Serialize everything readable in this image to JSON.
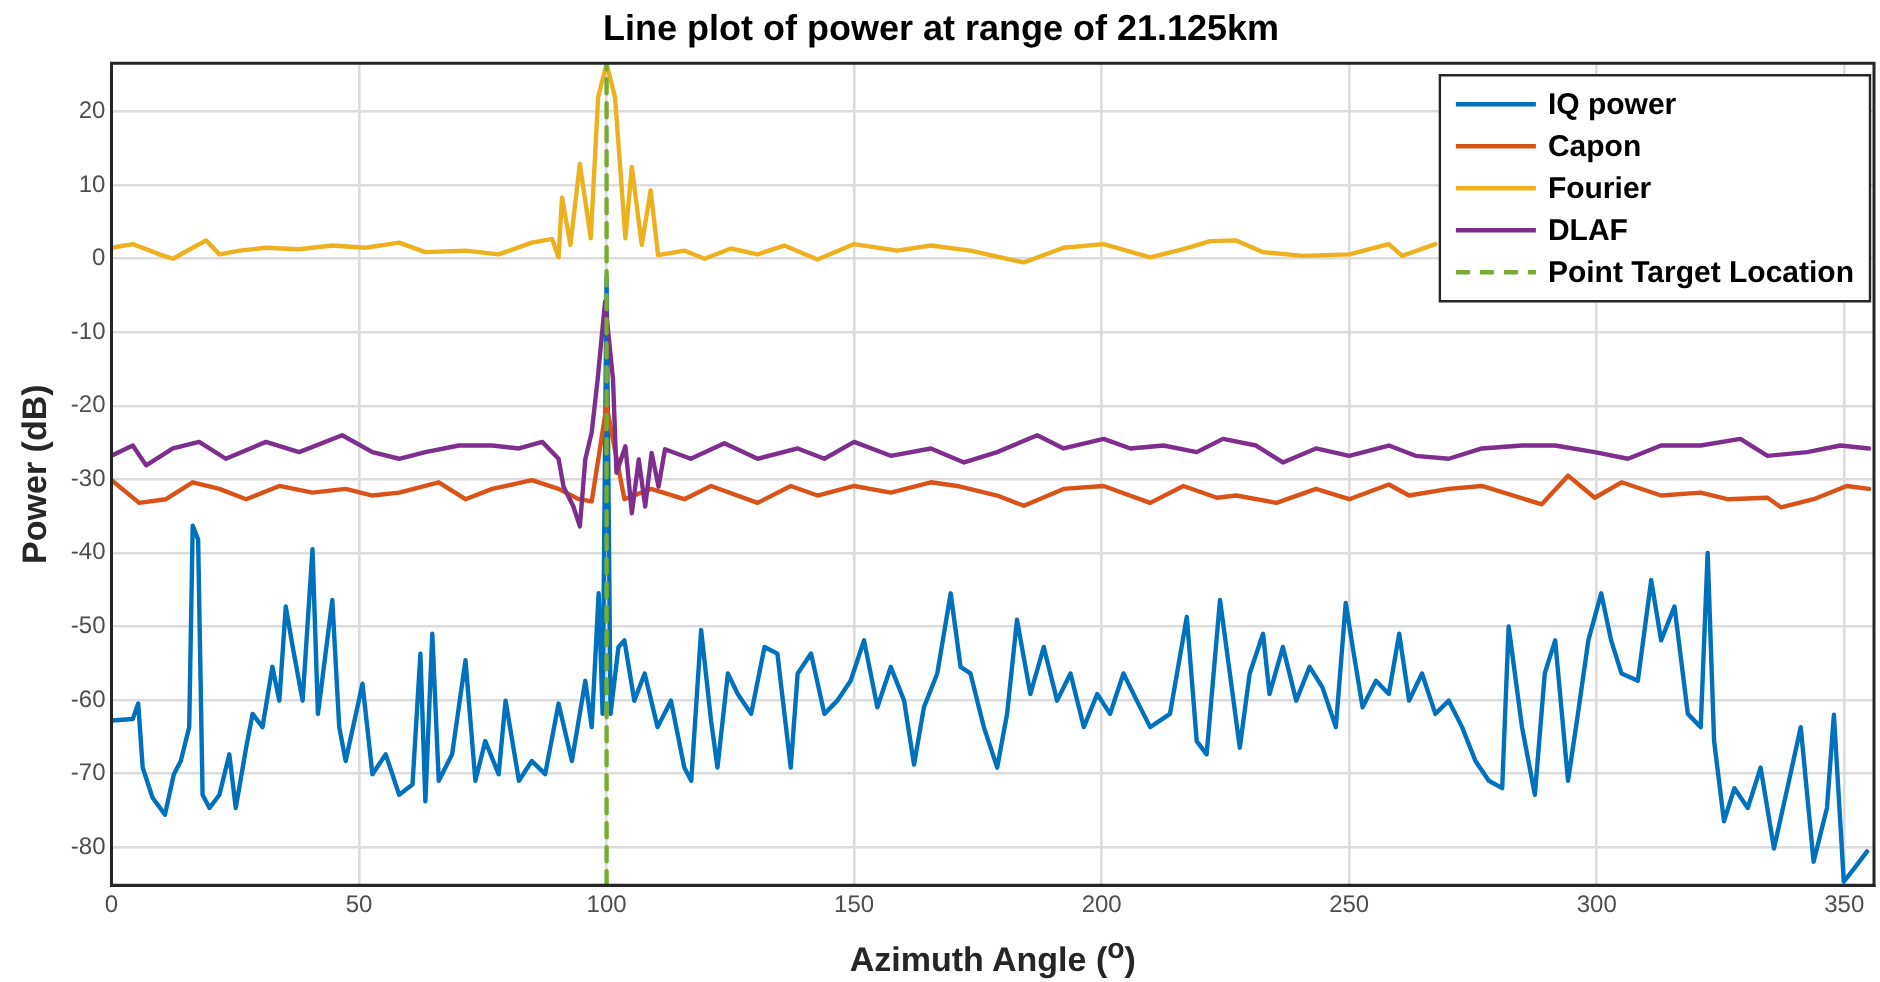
{
  "chart_data": {
    "type": "line",
    "title": "Line plot of power at range of 21.125km",
    "xlabel": "Azimuth Angle ($^{o}$)",
    "ylabel": "Power (dB)",
    "xlim": [
      0,
      356
    ],
    "ylim": [
      -85.2,
      26.6
    ],
    "xticks": [
      0,
      50,
      100,
      150,
      200,
      250,
      300,
      350
    ],
    "yticks": [
      -80,
      -70,
      -60,
      -50,
      -40,
      -30,
      -20,
      -10,
      0,
      10,
      20
    ],
    "grid": true,
    "legend": "top right",
    "marker": "none",
    "line_style": "solid",
    "series": [
      {
        "name": "IQ power",
        "color": "#0072bd",
        "x": [
          0,
          4.3,
          5.4,
          6.3,
          8.3,
          10.8,
          12.6,
          14,
          15.7,
          16.4,
          17.5,
          18.4,
          19.8,
          21.8,
          23.8,
          25.1,
          27.2,
          28.5,
          30.5,
          32.5,
          33.9,
          35.2,
          36.6,
          38.6,
          40.6,
          41.7,
          44.6,
          46,
          47.3,
          50.7,
          52.7,
          55.4,
          58.1,
          60.8,
          62.4,
          63.4,
          64.8,
          66.1,
          68.8,
          71.5,
          73.5,
          75.5,
          78.2,
          79.6,
          82.3,
          84.9,
          87.6,
          90.3,
          93,
          95.7,
          97,
          98.4,
          99.2,
          100,
          100.8,
          102.4,
          103.6,
          105.6,
          107.7,
          110.3,
          113,
          115.7,
          117.1,
          119.1,
          121.1,
          122.4,
          124.5,
          126.5,
          129.2,
          131.9,
          134.5,
          137.2,
          138.6,
          141.3,
          144,
          146.6,
          149.3,
          152,
          154.7,
          157.4,
          160.1,
          162.1,
          164.1,
          166.8,
          169.5,
          171.5,
          173.5,
          176.2,
          178.9,
          180.9,
          182.9,
          185.6,
          188.3,
          191,
          193.7,
          196.4,
          199.1,
          201.7,
          204.4,
          207.1,
          209.8,
          213.8,
          217.2,
          219.2,
          221.2,
          223.9,
          225.9,
          227.9,
          229.9,
          232.6,
          233.9,
          236.6,
          239.3,
          242,
          244.6,
          247.3,
          249.3,
          250.7,
          252.7,
          255.4,
          258,
          260.1,
          262.1,
          264.7,
          267.4,
          270.1,
          272.8,
          275.5,
          278.2,
          280.9,
          282.2,
          284.9,
          287.5,
          289.5,
          291.6,
          294.2,
          296.2,
          298.3,
          300.9,
          302.9,
          305,
          308.3,
          311,
          313,
          315.7,
          318.4,
          321,
          322.4,
          323.7,
          325.7,
          327.8,
          330.5,
          333.1,
          335.8,
          338.5,
          341.2,
          343.8,
          346.5,
          347.9,
          349.9,
          351.9,
          354.6
        ],
        "values": [
          -62.8,
          -62.6,
          -60.5,
          -69.2,
          -73.3,
          -75.6,
          -70.1,
          -68.3,
          -63.7,
          -36.3,
          -38.2,
          -72.9,
          -74.7,
          -72.9,
          -67.4,
          -74.7,
          -66.5,
          -61.9,
          -63.7,
          -55.5,
          -60.1,
          -47.3,
          -52.8,
          -60.1,
          -39.5,
          -61.9,
          -46.4,
          -63.7,
          -68.3,
          -57.8,
          -70.1,
          -67.4,
          -72.9,
          -71.5,
          -53.7,
          -73.8,
          -51,
          -71,
          -67.4,
          -54.6,
          -71,
          -65.6,
          -70.1,
          -60.1,
          -71,
          -68.3,
          -70.1,
          -60.5,
          -68.3,
          -57.4,
          -63.7,
          -45.5,
          -61.9,
          -2.6,
          -61.9,
          -52.8,
          -51.9,
          -60.1,
          -56.4,
          -63.7,
          -60.1,
          -69.2,
          -71,
          -50.5,
          -62.8,
          -69.2,
          -56.4,
          -59.2,
          -61.9,
          -52.8,
          -53.7,
          -69.2,
          -56.4,
          -53.7,
          -61.9,
          -60.1,
          -57.4,
          -51.9,
          -61,
          -55.5,
          -60.1,
          -68.8,
          -61,
          -56.4,
          -45.5,
          -55.5,
          -56.4,
          -63.7,
          -69.2,
          -61.9,
          -49.1,
          -59.2,
          -52.8,
          -60.1,
          -56.4,
          -63.7,
          -59.2,
          -61.9,
          -56.4,
          -60.1,
          -63.7,
          -61.9,
          -48.7,
          -65.6,
          -67.4,
          -46.4,
          -56.4,
          -66.5,
          -56.4,
          -51,
          -59.2,
          -52.8,
          -60.1,
          -55.5,
          -58.3,
          -63.7,
          -46.8,
          -52.8,
          -61,
          -57.4,
          -59.2,
          -51,
          -60.1,
          -56.4,
          -61.9,
          -60.1,
          -63.7,
          -68.3,
          -71,
          -72,
          -50,
          -63.7,
          -72.9,
          -56.4,
          -51.9,
          -71,
          -61.9,
          -51.9,
          -45.5,
          -51.9,
          -56.4,
          -57.4,
          -43.7,
          -51.9,
          -47.3,
          -61.9,
          -63.7,
          -40,
          -65.6,
          -76.5,
          -72,
          -74.7,
          -69.2,
          -80.2,
          -72,
          -63.7,
          -82,
          -74.7,
          -62,
          -84.7,
          -83,
          -80.6
        ]
      },
      {
        "name": "Capon",
        "color": "#d95319",
        "x": [
          0,
          5.6,
          11,
          16.4,
          21.8,
          27.2,
          33.9,
          40.6,
          47.3,
          52.7,
          58.1,
          66.1,
          71.5,
          76.9,
          84.9,
          90.3,
          94.4,
          97,
          100,
          103.6,
          109,
          115.7,
          121.1,
          130.5,
          137.2,
          142.6,
          150,
          157.4,
          165.5,
          170.8,
          178.9,
          184.3,
          192.3,
          200.4,
          209.8,
          216.5,
          223.3,
          227.2,
          235.3,
          243.3,
          250,
          258,
          262.1,
          270.1,
          276.8,
          288.9,
          294.2,
          299.6,
          305,
          313,
          321,
          326.4,
          334.5,
          337.2,
          343.8,
          350.5,
          355
        ],
        "values": [
          -30.1,
          -33.2,
          -32.7,
          -30.4,
          -31.3,
          -32.7,
          -30.9,
          -31.8,
          -31.3,
          -32.2,
          -31.8,
          -30.4,
          -32.7,
          -31.3,
          -30.1,
          -31.3,
          -32.7,
          -33,
          -20,
          -32.7,
          -31.3,
          -32.7,
          -30.9,
          -33.2,
          -30.9,
          -32.2,
          -30.9,
          -31.8,
          -30.4,
          -30.9,
          -32.2,
          -33.6,
          -31.3,
          -30.9,
          -33.2,
          -30.9,
          -32.5,
          -32.2,
          -33.2,
          -31.3,
          -32.7,
          -30.7,
          -32.2,
          -31.3,
          -30.9,
          -33.4,
          -29.5,
          -32.5,
          -30.4,
          -32.2,
          -31.8,
          -32.7,
          -32.5,
          -33.8,
          -32.7,
          -30.9,
          -31.3
        ]
      },
      {
        "name": "Fourier",
        "color": "#edb120",
        "x": [
          0,
          4.3,
          9.7,
          12.4,
          16.4,
          19.1,
          21.8,
          25.8,
          31.2,
          37.9,
          44.6,
          51.3,
          58.1,
          63.4,
          71.5,
          78.2,
          84.9,
          89,
          90.3,
          91,
          92.7,
          94.6,
          96.8,
          98.3,
          100,
          101.7,
          103.8,
          105.1,
          107.1,
          108.9,
          110.4,
          115.8,
          119.8,
          125.1,
          130.5,
          135.9,
          142.6,
          150,
          158.7,
          165.5,
          173.5,
          184.3,
          192.3,
          200.4,
          209.8,
          216.5,
          221.9,
          227.2,
          232.6,
          240.6,
          250,
          258,
          260.7,
          267.4
        ],
        "values": [
          1.5,
          2,
          0.6,
          0,
          1.5,
          2.5,
          0.6,
          1.1,
          1.5,
          1.3,
          1.8,
          1.5,
          2.2,
          0.9,
          1.1,
          0.6,
          2.2,
          2.7,
          0.2,
          8.3,
          1.9,
          12.9,
          2.8,
          22,
          26.5,
          22,
          2.8,
          12.5,
          1.9,
          9.3,
          0.5,
          1.1,
          0,
          1.4,
          0.6,
          1.8,
          -0.1,
          2,
          1.1,
          1.8,
          1.1,
          -0.5,
          1.5,
          2,
          0.2,
          1.3,
          2.4,
          2.5,
          0.9,
          0.4,
          0.6,
          2,
          0.4,
          2
        ]
      },
      {
        "name": "DLAF",
        "color": "#7e2f8e",
        "x": [
          0,
          4.3,
          7,
          12.4,
          17.7,
          23.1,
          31.2,
          37.9,
          46.6,
          52.7,
          58.1,
          63.4,
          70.2,
          76.9,
          82.3,
          87,
          90.3,
          91.3,
          93.3,
          94.6,
          95.7,
          97,
          98.2,
          99.7,
          101.3,
          102,
          103.8,
          105.1,
          106.5,
          107.8,
          109.1,
          110.5,
          111.8,
          117,
          123.8,
          130.5,
          138.6,
          144,
          150,
          157.4,
          165.5,
          172.2,
          178.9,
          187,
          192.3,
          200.4,
          205.8,
          212.5,
          219.2,
          224.5,
          231.2,
          236.6,
          243.3,
          250,
          258,
          263.4,
          270.1,
          276.8,
          284.9,
          291.6,
          299.6,
          306.3,
          313,
          321,
          329,
          334.5,
          342.5,
          349.2,
          355
        ],
        "values": [
          -26.8,
          -25.4,
          -28.1,
          -25.8,
          -24.9,
          -27.2,
          -24.9,
          -26.3,
          -24,
          -26.3,
          -27.2,
          -26.3,
          -25.4,
          -25.4,
          -25.8,
          -24.9,
          -27.2,
          -31,
          -33.7,
          -36.4,
          -27.3,
          -23.6,
          -16.4,
          -5.8,
          -16.4,
          -29.1,
          -25.5,
          -34.6,
          -27.3,
          -33.7,
          -26.4,
          -31,
          -25.9,
          -27.2,
          -25.1,
          -27.2,
          -25.8,
          -27.2,
          -24.9,
          -26.8,
          -25.8,
          -27.7,
          -26.3,
          -24,
          -25.8,
          -24.5,
          -25.8,
          -25.4,
          -26.3,
          -24.5,
          -25.4,
          -27.7,
          -25.8,
          -26.8,
          -25.4,
          -26.8,
          -27.2,
          -25.8,
          -25.4,
          -25.4,
          -26.3,
          -27.2,
          -25.4,
          -25.4,
          -24.5,
          -26.8,
          -26.3,
          -25.4,
          -25.8
        ]
      },
      {
        "name": "Point Target Location",
        "color": "#77ac30",
        "line_style": "dashed",
        "x": [
          100,
          100
        ],
        "values": [
          -85.2,
          26.6
        ]
      }
    ]
  }
}
